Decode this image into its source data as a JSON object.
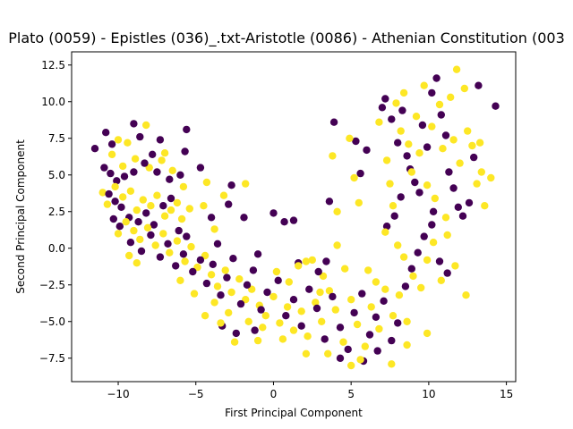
{
  "chart_data": {
    "type": "scatter",
    "title": "Plato (0059) - Epistles (036)_.txt-Aristotle (0086) - Athenian Constitution (003",
    "xlabel": "First Principal Component",
    "ylabel": "Second Principal Component",
    "xlim": [
      -13,
      15.6
    ],
    "ylim": [
      -9.1,
      13.4
    ],
    "xticks": [
      -10,
      -5,
      0,
      5,
      10,
      15
    ],
    "xtick_labels": [
      "−10",
      "−5",
      "0",
      "5",
      "10",
      "15"
    ],
    "yticks": [
      -7.5,
      -5.0,
      -2.5,
      0.0,
      2.5,
      5.0,
      7.5,
      10.0,
      12.5
    ],
    "ytick_labels": [
      "−7.5",
      "−5.0",
      "−2.5",
      "0.0",
      "2.5",
      "5.0",
      "7.5",
      "10.0",
      "12.5"
    ],
    "grid": false,
    "legend": "none",
    "colors": {
      "class_0": "#440154",
      "class_1": "#fde725"
    },
    "series": [
      {
        "color": "#440154",
        "points": [
          [
            -11.5,
            6.8
          ],
          [
            -10.8,
            7.9
          ],
          [
            -10.4,
            7.1
          ],
          [
            -9.0,
            8.5
          ],
          [
            -8.6,
            7.6
          ],
          [
            -7.3,
            7.4
          ],
          [
            -5.6,
            8.1
          ],
          [
            -10.9,
            5.5
          ],
          [
            -10.5,
            5.1
          ],
          [
            -10.1,
            4.6
          ],
          [
            -9.6,
            4.9
          ],
          [
            -9.0,
            5.2
          ],
          [
            -8.3,
            5.8
          ],
          [
            -7.8,
            6.4
          ],
          [
            -7.5,
            5.2
          ],
          [
            -6.7,
            4.7
          ],
          [
            -6.0,
            5.0
          ],
          [
            -5.7,
            6.6
          ],
          [
            -10.6,
            3.7
          ],
          [
            -10.2,
            3.2
          ],
          [
            -9.8,
            2.8
          ],
          [
            -9.3,
            2.1
          ],
          [
            -8.7,
            1.8
          ],
          [
            -8.2,
            2.4
          ],
          [
            -7.7,
            1.6
          ],
          [
            -7.1,
            2.9
          ],
          [
            -6.6,
            3.4
          ],
          [
            -6.1,
            1.2
          ],
          [
            -5.6,
            0.8
          ],
          [
            -10.3,
            2.0
          ],
          [
            -9.9,
            1.5
          ],
          [
            -9.2,
            0.4
          ],
          [
            -8.5,
            -0.2
          ],
          [
            -7.9,
            0.9
          ],
          [
            -7.3,
            -0.6
          ],
          [
            -6.8,
            0.3
          ],
          [
            -6.3,
            -1.2
          ],
          [
            -5.8,
            -0.4
          ],
          [
            -5.2,
            -1.6
          ],
          [
            -4.7,
            -0.8
          ],
          [
            -4.3,
            -2.4
          ],
          [
            -3.9,
            -1.1
          ],
          [
            -3.4,
            -3.2
          ],
          [
            -3.0,
            -2.0
          ],
          [
            -2.6,
            -0.7
          ],
          [
            -2.1,
            -3.8
          ],
          [
            -1.7,
            -2.5
          ],
          [
            -1.3,
            -1.5
          ],
          [
            -0.8,
            -4.2
          ],
          [
            -0.4,
            -3.0
          ],
          [
            0.0,
            2.4
          ],
          [
            0.7,
            1.8
          ],
          [
            1.3,
            1.9
          ],
          [
            0.3,
            -2.2
          ],
          [
            0.8,
            -4.6
          ],
          [
            1.3,
            -3.5
          ],
          [
            1.8,
            -5.3
          ],
          [
            2.3,
            -2.8
          ],
          [
            2.8,
            -4.1
          ],
          [
            3.3,
            -6.2
          ],
          [
            3.8,
            -3.3
          ],
          [
            4.3,
            -5.4
          ],
          [
            4.8,
            -6.9
          ],
          [
            5.2,
            -4.4
          ],
          [
            5.7,
            -3.1
          ],
          [
            6.2,
            -5.9
          ],
          [
            6.6,
            -4.7
          ],
          [
            7.1,
            -3.6
          ],
          [
            7.6,
            -6.3
          ],
          [
            8.0,
            -5.1
          ],
          [
            8.5,
            -2.6
          ],
          [
            8.9,
            -1.4
          ],
          [
            9.3,
            -0.3
          ],
          [
            9.7,
            0.8
          ],
          [
            10.2,
            1.6
          ],
          [
            10.7,
            -0.9
          ],
          [
            11.2,
            -1.7
          ],
          [
            4.3,
            -7.5
          ],
          [
            5.8,
            -7.7
          ],
          [
            6.7,
            -7.0
          ],
          [
            -3.3,
            -5.3
          ],
          [
            -2.4,
            -5.8
          ],
          [
            -1.2,
            -5.6
          ],
          [
            3.6,
            3.2
          ],
          [
            3.9,
            8.6
          ],
          [
            5.3,
            7.3
          ],
          [
            5.6,
            5.1
          ],
          [
            6.0,
            6.7
          ],
          [
            7.0,
            9.6
          ],
          [
            7.2,
            10.2
          ],
          [
            7.6,
            8.8
          ],
          [
            8.0,
            7.2
          ],
          [
            8.3,
            9.4
          ],
          [
            8.6,
            6.3
          ],
          [
            8.8,
            5.4
          ],
          [
            9.1,
            4.5
          ],
          [
            9.4,
            3.8
          ],
          [
            9.6,
            8.4
          ],
          [
            9.9,
            6.9
          ],
          [
            10.2,
            10.6
          ],
          [
            10.5,
            11.6
          ],
          [
            10.8,
            9.1
          ],
          [
            11.1,
            7.7
          ],
          [
            11.3,
            5.2
          ],
          [
            11.6,
            4.1
          ],
          [
            11.9,
            2.8
          ],
          [
            12.2,
            2.2
          ],
          [
            12.6,
            3.1
          ],
          [
            12.9,
            6.2
          ],
          [
            13.2,
            11.1
          ],
          [
            14.3,
            9.7
          ],
          [
            10.3,
            2.5
          ],
          [
            8.2,
            3.5
          ],
          [
            7.8,
            2.2
          ],
          [
            7.3,
            1.5
          ],
          [
            -4.0,
            2.1
          ],
          [
            -2.9,
            3.0
          ],
          [
            -4.7,
            5.5
          ],
          [
            -2.7,
            4.3
          ],
          [
            -1.9,
            2.1
          ],
          [
            -3.6,
            0.3
          ],
          [
            -1.0,
            -0.4
          ],
          [
            1.6,
            -1.0
          ],
          [
            2.9,
            -1.6
          ],
          [
            3.4,
            -0.9
          ]
        ]
      },
      {
        "color": "#fde725",
        "points": [
          [
            -10.0,
            7.4
          ],
          [
            -9.4,
            7.2
          ],
          [
            -8.2,
            8.4
          ],
          [
            -7.0,
            6.5
          ],
          [
            -10.4,
            6.4
          ],
          [
            -9.7,
            5.6
          ],
          [
            -8.9,
            6.1
          ],
          [
            -8.0,
            5.5
          ],
          [
            -7.2,
            6.0
          ],
          [
            -6.5,
            5.3
          ],
          [
            -5.8,
            4.2
          ],
          [
            -11.0,
            3.8
          ],
          [
            -10.7,
            3.0
          ],
          [
            -10.2,
            4.2
          ],
          [
            -9.7,
            3.5
          ],
          [
            -9.2,
            3.9
          ],
          [
            -8.8,
            2.6
          ],
          [
            -8.4,
            3.3
          ],
          [
            -7.9,
            2.9
          ],
          [
            -7.5,
            3.6
          ],
          [
            -7.0,
            2.2
          ],
          [
            -6.6,
            2.6
          ],
          [
            -6.2,
            3.1
          ],
          [
            -5.9,
            2.0
          ],
          [
            -5.4,
            2.7
          ],
          [
            -10.0,
            1.0
          ],
          [
            -9.5,
            1.8
          ],
          [
            -9.0,
            1.2
          ],
          [
            -8.6,
            0.6
          ],
          [
            -8.1,
            1.4
          ],
          [
            -7.6,
            0.2
          ],
          [
            -7.1,
            1.0
          ],
          [
            -6.7,
            -0.3
          ],
          [
            -6.2,
            0.5
          ],
          [
            -5.7,
            -0.9
          ],
          [
            -5.3,
            0.1
          ],
          [
            -4.9,
            -1.3
          ],
          [
            -4.4,
            -0.5
          ],
          [
            -4.0,
            -1.8
          ],
          [
            -3.6,
            -2.6
          ],
          [
            -3.1,
            -1.5
          ],
          [
            -2.7,
            -3.0
          ],
          [
            -2.2,
            -2.1
          ],
          [
            -1.8,
            -3.5
          ],
          [
            -1.4,
            -2.8
          ],
          [
            -0.9,
            -3.9
          ],
          [
            -0.5,
            -4.6
          ],
          [
            0.0,
            -3.3
          ],
          [
            0.4,
            -5.1
          ],
          [
            0.9,
            -4.0
          ],
          [
            1.3,
            -5.6
          ],
          [
            1.8,
            -4.3
          ],
          [
            2.2,
            -6.0
          ],
          [
            2.7,
            -3.7
          ],
          [
            3.1,
            -5.0
          ],
          [
            3.6,
            -2.9
          ],
          [
            4.0,
            -4.2
          ],
          [
            4.5,
            -6.4
          ],
          [
            5.0,
            -3.5
          ],
          [
            5.4,
            -5.2
          ],
          [
            5.9,
            -6.7
          ],
          [
            6.3,
            -4.0
          ],
          [
            6.8,
            -5.5
          ],
          [
            7.2,
            -2.8
          ],
          [
            7.7,
            -4.6
          ],
          [
            8.1,
            -3.2
          ],
          [
            8.6,
            -5.0
          ],
          [
            9.0,
            -1.9
          ],
          [
            9.5,
            -2.7
          ],
          [
            9.9,
            -0.8
          ],
          [
            10.3,
            0.4
          ],
          [
            10.8,
            -2.2
          ],
          [
            11.2,
            0.9
          ],
          [
            11.7,
            -1.2
          ],
          [
            12.4,
            -3.2
          ],
          [
            3.5,
            -7.2
          ],
          [
            5.0,
            -8.0
          ],
          [
            7.6,
            -7.9
          ],
          [
            -1.0,
            -6.3
          ],
          [
            0.6,
            -6.2
          ],
          [
            -2.5,
            -6.4
          ],
          [
            4.1,
            0.2
          ],
          [
            4.6,
            -1.4
          ],
          [
            3.2,
            -1.9
          ],
          [
            2.1,
            -0.9
          ],
          [
            -4.3,
            4.5
          ],
          [
            -3.2,
            3.6
          ],
          [
            -4.5,
            2.9
          ],
          [
            -1.8,
            4.4
          ],
          [
            -3.8,
            1.3
          ],
          [
            3.8,
            6.3
          ],
          [
            4.1,
            2.5
          ],
          [
            4.9,
            7.5
          ],
          [
            5.2,
            4.8
          ],
          [
            5.5,
            3.1
          ],
          [
            6.8,
            8.6
          ],
          [
            7.3,
            6.0
          ],
          [
            7.5,
            4.4
          ],
          [
            7.7,
            2.9
          ],
          [
            7.9,
            9.9
          ],
          [
            8.2,
            8.0
          ],
          [
            8.4,
            10.6
          ],
          [
            8.7,
            7.1
          ],
          [
            8.9,
            5.2
          ],
          [
            9.2,
            9.0
          ],
          [
            9.4,
            6.5
          ],
          [
            9.7,
            11.1
          ],
          [
            9.9,
            4.3
          ],
          [
            10.2,
            8.3
          ],
          [
            10.4,
            3.4
          ],
          [
            10.7,
            9.8
          ],
          [
            10.9,
            6.8
          ],
          [
            11.1,
            2.1
          ],
          [
            11.4,
            10.3
          ],
          [
            11.6,
            7.4
          ],
          [
            11.8,
            12.2
          ],
          [
            12.0,
            5.8
          ],
          [
            12.3,
            10.9
          ],
          [
            12.5,
            8.0
          ],
          [
            12.8,
            7.0
          ],
          [
            13.1,
            4.4
          ],
          [
            13.4,
            5.2
          ],
          [
            13.6,
            2.9
          ],
          [
            14.0,
            4.8
          ],
          [
            13.3,
            7.2
          ],
          [
            7.2,
            1.1
          ],
          [
            8.0,
            0.2
          ],
          [
            8.4,
            -0.6
          ],
          [
            -9.3,
            -0.5
          ],
          [
            -8.8,
            -1.0
          ],
          [
            -6.0,
            -2.2
          ],
          [
            -5.1,
            -3.1
          ],
          [
            -4.4,
            -4.6
          ],
          [
            -3.8,
            -3.7
          ],
          [
            -3.4,
            -5.1
          ],
          [
            -2.9,
            -4.4
          ],
          [
            -1.6,
            -5.0
          ],
          [
            0.2,
            -1.6
          ],
          [
            1.0,
            -2.3
          ],
          [
            1.6,
            -1.2
          ],
          [
            2.5,
            -0.8
          ],
          [
            3.0,
            -3.0
          ],
          [
            6.1,
            -1.5
          ],
          [
            6.6,
            -2.3
          ],
          [
            9.9,
            -5.8
          ],
          [
            8.6,
            -6.6
          ],
          [
            5.6,
            -7.6
          ],
          [
            2.1,
            -7.2
          ],
          [
            -0.7,
            -5.4
          ]
        ]
      }
    ]
  }
}
